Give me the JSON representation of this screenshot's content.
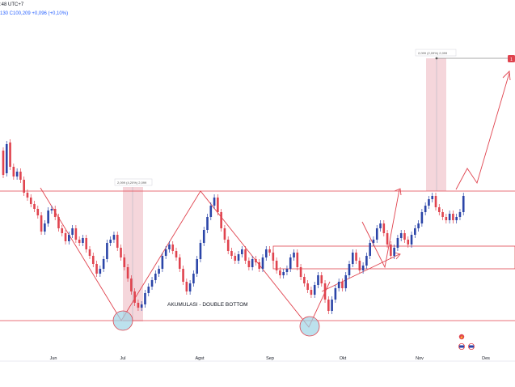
{
  "header": {
    "time_label": ":48 UTC+7",
    "ohlc_label": "130  C100,209  +0,096 (+0,10%)"
  },
  "colors": {
    "background": "#ffffff",
    "up_candle": "#2b45a8",
    "down_candle": "#e0434e",
    "drawing": "#e0434e",
    "circle_fill": "#9fd4e6",
    "measure_fill": "#e9a3b0",
    "axis_divider": "#e0e3eb"
  },
  "chart_data": {
    "type": "candlestick",
    "x_axis": {
      "ticks": [
        "Jun",
        "Jul",
        "Agst",
        "Sep",
        "Okt",
        "Nov",
        "Des"
      ]
    },
    "annotations": {
      "pattern_label": "AKUMULASI - DOUBLE BOTTOM",
      "measure_1": "2,099 (4,20%) 2,099",
      "measure_2": "2,099 (2,09%) 2,099",
      "target_marker": "1"
    },
    "candles": [
      [
        0,
        186,
        216
      ],
      [
        1,
        214,
        178
      ],
      [
        2,
        176,
        206
      ],
      [
        3,
        206,
        218
      ],
      [
        4,
        218,
        212
      ],
      [
        5,
        212,
        222
      ],
      [
        6,
        222,
        238
      ],
      [
        7,
        238,
        244
      ],
      [
        8,
        244,
        252
      ],
      [
        9,
        252,
        258
      ],
      [
        10,
        258,
        266
      ],
      [
        11,
        266,
        286
      ],
      [
        12,
        286,
        276
      ],
      [
        13,
        276,
        260
      ],
      [
        14,
        260,
        258
      ],
      [
        15,
        258,
        268
      ],
      [
        16,
        268,
        282
      ],
      [
        17,
        282,
        288
      ],
      [
        18,
        288,
        298
      ],
      [
        19,
        298,
        290
      ],
      [
        20,
        290,
        282
      ],
      [
        21,
        282,
        296
      ],
      [
        22,
        296,
        300
      ],
      [
        23,
        300,
        294
      ],
      [
        24,
        294,
        308
      ],
      [
        25,
        308,
        316
      ],
      [
        26,
        316,
        326
      ],
      [
        27,
        326,
        338
      ],
      [
        28,
        338,
        332
      ],
      [
        29,
        332,
        320
      ],
      [
        30,
        320,
        300
      ],
      [
        31,
        300,
        296
      ],
      [
        32,
        296,
        290
      ],
      [
        33,
        290,
        306
      ],
      [
        34,
        306,
        318
      ],
      [
        35,
        318,
        330
      ],
      [
        36,
        330,
        344
      ],
      [
        37,
        344,
        360
      ],
      [
        38,
        360,
        374
      ],
      [
        39,
        374,
        380
      ],
      [
        40,
        380,
        376
      ],
      [
        41,
        376,
        362
      ],
      [
        42,
        362,
        354
      ],
      [
        43,
        354,
        346
      ],
      [
        44,
        346,
        338
      ],
      [
        45,
        338,
        332
      ],
      [
        46,
        332,
        316
      ],
      [
        47,
        316,
        308
      ],
      [
        48,
        308,
        302
      ],
      [
        49,
        302,
        310
      ],
      [
        50,
        310,
        318
      ],
      [
        51,
        318,
        332
      ],
      [
        52,
        332,
        348
      ],
      [
        53,
        348,
        360
      ],
      [
        54,
        360,
        350
      ],
      [
        55,
        350,
        338
      ],
      [
        56,
        338,
        320
      ],
      [
        57,
        320,
        300
      ],
      [
        58,
        300,
        284
      ],
      [
        59,
        284,
        268
      ],
      [
        60,
        268,
        254
      ],
      [
        61,
        254,
        244
      ],
      [
        62,
        244,
        262
      ],
      [
        63,
        262,
        282
      ],
      [
        64,
        282,
        296
      ],
      [
        65,
        296,
        310
      ],
      [
        66,
        310,
        316
      ],
      [
        67,
        316,
        322
      ],
      [
        68,
        322,
        314
      ],
      [
        69,
        314,
        308
      ],
      [
        70,
        308,
        322
      ],
      [
        71,
        322,
        330
      ],
      [
        72,
        330,
        320
      ],
      [
        73,
        320,
        324
      ],
      [
        74,
        324,
        332
      ],
      [
        75,
        332,
        318
      ],
      [
        76,
        318,
        308
      ],
      [
        77,
        308,
        312
      ],
      [
        78,
        312,
        322
      ],
      [
        79,
        322,
        334
      ],
      [
        80,
        334,
        340
      ],
      [
        81,
        340,
        336
      ],
      [
        82,
        336,
        332
      ],
      [
        83,
        332,
        318
      ],
      [
        84,
        318,
        312
      ],
      [
        85,
        312,
        330
      ],
      [
        86,
        330,
        342
      ],
      [
        87,
        342,
        350
      ],
      [
        88,
        350,
        358
      ],
      [
        89,
        358,
        364
      ],
      [
        90,
        364,
        352
      ],
      [
        91,
        352,
        340
      ],
      [
        92,
        340,
        350
      ],
      [
        93,
        350,
        370
      ],
      [
        94,
        370,
        384
      ],
      [
        95,
        384,
        370
      ],
      [
        96,
        370,
        356
      ],
      [
        97,
        356,
        348
      ],
      [
        98,
        348,
        356
      ],
      [
        99,
        356,
        340
      ],
      [
        100,
        340,
        326
      ],
      [
        101,
        326,
        312
      ],
      [
        102,
        312,
        322
      ],
      [
        103,
        322,
        334
      ],
      [
        104,
        334,
        328
      ],
      [
        105,
        328,
        316
      ],
      [
        106,
        316,
        300
      ],
      [
        107,
        300,
        296
      ],
      [
        108,
        296,
        282
      ],
      [
        109,
        282,
        276
      ],
      [
        110,
        276,
        288
      ],
      [
        111,
        288,
        302
      ],
      [
        112,
        302,
        316
      ],
      [
        113,
        316,
        306
      ],
      [
        114,
        306,
        294
      ],
      [
        115,
        294,
        288
      ],
      [
        116,
        288,
        296
      ],
      [
        117,
        296,
        302
      ],
      [
        118,
        302,
        290
      ],
      [
        119,
        290,
        282
      ],
      [
        120,
        282,
        276
      ],
      [
        121,
        276,
        262
      ],
      [
        122,
        262,
        254
      ],
      [
        123,
        254,
        246
      ],
      [
        124,
        246,
        242
      ],
      [
        125,
        242,
        256
      ],
      [
        126,
        256,
        262
      ],
      [
        127,
        262,
        268
      ],
      [
        128,
        268,
        272
      ],
      [
        129,
        272,
        264
      ],
      [
        130,
        264,
        272
      ],
      [
        131,
        272,
        268
      ],
      [
        132,
        268,
        262
      ],
      [
        133,
        262,
        242
      ]
    ]
  }
}
